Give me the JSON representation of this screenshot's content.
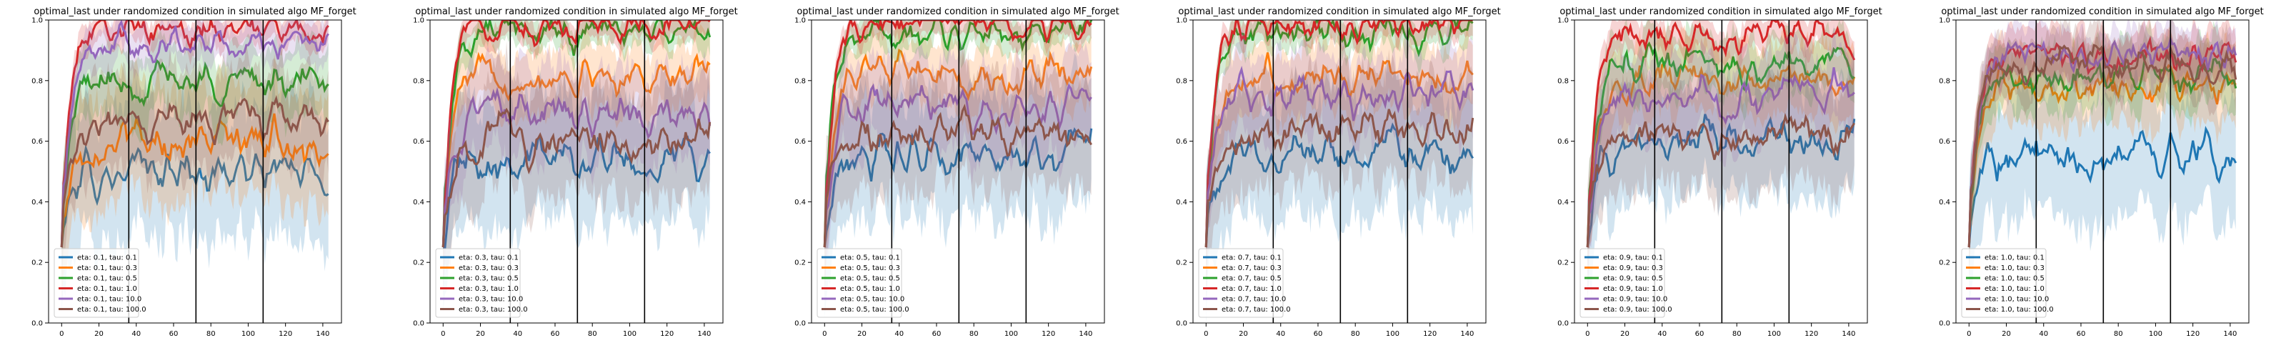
{
  "figure": {
    "background": "#ffffff"
  },
  "chart_data": [
    {
      "type": "line",
      "title": "optimal_last under randomized condition in simulated algo MF_forget",
      "xlabel": "",
      "ylabel": "",
      "xlim": [
        -7,
        150
      ],
      "ylim": [
        0.0,
        1.0
      ],
      "xticks": [
        0,
        20,
        40,
        60,
        80,
        100,
        120,
        140
      ],
      "xtick_labels": [
        "0",
        "20",
        "40",
        "60",
        "80",
        "100",
        "120",
        "140"
      ],
      "yticks": [
        0.0,
        0.2,
        0.4,
        0.6,
        0.8,
        1.0
      ],
      "ytick_labels": [
        "0.0",
        "0.2",
        "0.4",
        "0.6",
        "0.8",
        "1.0"
      ],
      "vlines": [
        36,
        72,
        108
      ],
      "legend": "lower-left",
      "series": [
        {
          "name": "eta: 0.1, tau: 0.1",
          "color": "#1f77b4",
          "plateau": 0.5
        },
        {
          "name": "eta: 0.1, tau: 0.3",
          "color": "#ff7f0e",
          "plateau": 0.6
        },
        {
          "name": "eta: 0.1, tau: 0.5",
          "color": "#2ca02c",
          "plateau": 0.8
        },
        {
          "name": "eta: 0.1, tau: 1.0",
          "color": "#d62728",
          "plateau": 0.97
        },
        {
          "name": "eta: 0.1, tau: 10.0",
          "color": "#9467bd",
          "plateau": 0.92
        },
        {
          "name": "eta: 0.1, tau: 100.0",
          "color": "#8c564b",
          "plateau": 0.68
        }
      ]
    },
    {
      "type": "line",
      "title": "optimal_last under randomized condition in simulated algo MF_forget",
      "xlabel": "",
      "ylabel": "",
      "xlim": [
        -7,
        150
      ],
      "ylim": [
        0.0,
        1.0
      ],
      "xticks": [
        0,
        20,
        40,
        60,
        80,
        100,
        120,
        140
      ],
      "xtick_labels": [
        "0",
        "20",
        "40",
        "60",
        "80",
        "100",
        "120",
        "140"
      ],
      "yticks": [
        0.0,
        0.2,
        0.4,
        0.6,
        0.8,
        1.0
      ],
      "ytick_labels": [
        "0.0",
        "0.2",
        "0.4",
        "0.6",
        "0.8",
        "1.0"
      ],
      "vlines": [
        36,
        72,
        108
      ],
      "legend": "lower-left",
      "series": [
        {
          "name": "eta: 0.3, tau: 0.1",
          "color": "#1f77b4",
          "plateau": 0.55
        },
        {
          "name": "eta: 0.3, tau: 0.3",
          "color": "#ff7f0e",
          "plateau": 0.82
        },
        {
          "name": "eta: 0.3, tau: 0.5",
          "color": "#2ca02c",
          "plateau": 0.96
        },
        {
          "name": "eta: 0.3, tau: 1.0",
          "color": "#d62728",
          "plateau": 0.99
        },
        {
          "name": "eta: 0.3, tau: 10.0",
          "color": "#9467bd",
          "plateau": 0.7
        },
        {
          "name": "eta: 0.3, tau: 100.0",
          "color": "#8c564b",
          "plateau": 0.6
        }
      ]
    },
    {
      "type": "line",
      "title": "optimal_last under randomized condition in simulated algo MF_forget",
      "xlabel": "",
      "ylabel": "",
      "xlim": [
        -7,
        150
      ],
      "ylim": [
        0.0,
        1.0
      ],
      "xticks": [
        0,
        20,
        40,
        60,
        80,
        100,
        120,
        140
      ],
      "xtick_labels": [
        "0",
        "20",
        "40",
        "60",
        "80",
        "100",
        "120",
        "140"
      ],
      "yticks": [
        0.0,
        0.2,
        0.4,
        0.6,
        0.8,
        1.0
      ],
      "ytick_labels": [
        "0.0",
        "0.2",
        "0.4",
        "0.6",
        "0.8",
        "1.0"
      ],
      "vlines": [
        36,
        72,
        108
      ],
      "legend": "lower-left",
      "series": [
        {
          "name": "eta: 0.5, tau: 0.1",
          "color": "#1f77b4",
          "plateau": 0.55
        },
        {
          "name": "eta: 0.5, tau: 0.3",
          "color": "#ff7f0e",
          "plateau": 0.82
        },
        {
          "name": "eta: 0.5, tau: 0.5",
          "color": "#2ca02c",
          "plateau": 0.96
        },
        {
          "name": "eta: 0.5, tau: 1.0",
          "color": "#d62728",
          "plateau": 0.99
        },
        {
          "name": "eta: 0.5, tau: 10.0",
          "color": "#9467bd",
          "plateau": 0.72
        },
        {
          "name": "eta: 0.5, tau: 100.0",
          "color": "#8c564b",
          "plateau": 0.62
        }
      ]
    },
    {
      "type": "line",
      "title": "optimal_last under randomized condition in simulated algo MF_forget",
      "xlabel": "",
      "ylabel": "",
      "xlim": [
        -7,
        150
      ],
      "ylim": [
        0.0,
        1.0
      ],
      "xticks": [
        0,
        20,
        40,
        60,
        80,
        100,
        120,
        140
      ],
      "xtick_labels": [
        "0",
        "20",
        "40",
        "60",
        "80",
        "100",
        "120",
        "140"
      ],
      "yticks": [
        0.0,
        0.2,
        0.4,
        0.6,
        0.8,
        1.0
      ],
      "ytick_labels": [
        "0.0",
        "0.2",
        "0.4",
        "0.6",
        "0.8",
        "1.0"
      ],
      "vlines": [
        36,
        72,
        108
      ],
      "legend": "lower-left",
      "series": [
        {
          "name": "eta: 0.7, tau: 0.1",
          "color": "#1f77b4",
          "plateau": 0.55
        },
        {
          "name": "eta: 0.7, tau: 0.3",
          "color": "#ff7f0e",
          "plateau": 0.8
        },
        {
          "name": "eta: 0.7, tau: 0.5",
          "color": "#2ca02c",
          "plateau": 0.95
        },
        {
          "name": "eta: 0.7, tau: 1.0",
          "color": "#d62728",
          "plateau": 0.98
        },
        {
          "name": "eta: 0.7, tau: 10.0",
          "color": "#9467bd",
          "plateau": 0.75
        },
        {
          "name": "eta: 0.7, tau: 100.0",
          "color": "#8c564b",
          "plateau": 0.63
        }
      ]
    },
    {
      "type": "line",
      "title": "optimal_last under randomized condition in simulated algo MF_forget",
      "xlabel": "",
      "ylabel": "",
      "xlim": [
        -7,
        150
      ],
      "ylim": [
        0.0,
        1.0
      ],
      "xticks": [
        0,
        20,
        40,
        60,
        80,
        100,
        120,
        140
      ],
      "xtick_labels": [
        "0",
        "20",
        "40",
        "60",
        "80",
        "100",
        "120",
        "140"
      ],
      "yticks": [
        0.0,
        0.2,
        0.4,
        0.6,
        0.8,
        1.0
      ],
      "ytick_labels": [
        "0.0",
        "0.2",
        "0.4",
        "0.6",
        "0.8",
        "1.0"
      ],
      "vlines": [
        36,
        72,
        108
      ],
      "legend": "lower-left",
      "series": [
        {
          "name": "eta: 0.9, tau: 0.1",
          "color": "#1f77b4",
          "plateau": 0.6
        },
        {
          "name": "eta: 0.9, tau: 0.3",
          "color": "#ff7f0e",
          "plateau": 0.8
        },
        {
          "name": "eta: 0.9, tau: 0.5",
          "color": "#2ca02c",
          "plateau": 0.85
        },
        {
          "name": "eta: 0.9, tau: 1.0",
          "color": "#d62728",
          "plateau": 0.95
        },
        {
          "name": "eta: 0.9, tau: 10.0",
          "color": "#9467bd",
          "plateau": 0.75
        },
        {
          "name": "eta: 0.9, tau: 100.0",
          "color": "#8c564b",
          "plateau": 0.62
        }
      ]
    },
    {
      "type": "line",
      "title": "optimal_last under randomized condition in simulated algo MF_forget",
      "xlabel": "",
      "ylabel": "",
      "xlim": [
        -7,
        150
      ],
      "ylim": [
        0.0,
        1.0
      ],
      "xticks": [
        0,
        20,
        40,
        60,
        80,
        100,
        120,
        140
      ],
      "xtick_labels": [
        "0",
        "20",
        "40",
        "60",
        "80",
        "100",
        "120",
        "140"
      ],
      "yticks": [
        0.0,
        0.2,
        0.4,
        0.6,
        0.8,
        1.0
      ],
      "ytick_labels": [
        "0.0",
        "0.2",
        "0.4",
        "0.6",
        "0.8",
        "1.0"
      ],
      "vlines": [
        36,
        72,
        108
      ],
      "legend": "lower-left",
      "series": [
        {
          "name": "eta: 1.0, tau: 0.1",
          "color": "#1f77b4",
          "plateau": 0.55
        },
        {
          "name": "eta: 1.0, tau: 0.3",
          "color": "#ff7f0e",
          "plateau": 0.78
        },
        {
          "name": "eta: 1.0, tau: 0.5",
          "color": "#2ca02c",
          "plateau": 0.82
        },
        {
          "name": "eta: 1.0, tau: 1.0",
          "color": "#d62728",
          "plateau": 0.88
        },
        {
          "name": "eta: 1.0, tau: 10.0",
          "color": "#9467bd",
          "plateau": 0.88
        },
        {
          "name": "eta: 1.0, tau: 100.0",
          "color": "#8c564b",
          "plateau": 0.85
        }
      ]
    }
  ]
}
